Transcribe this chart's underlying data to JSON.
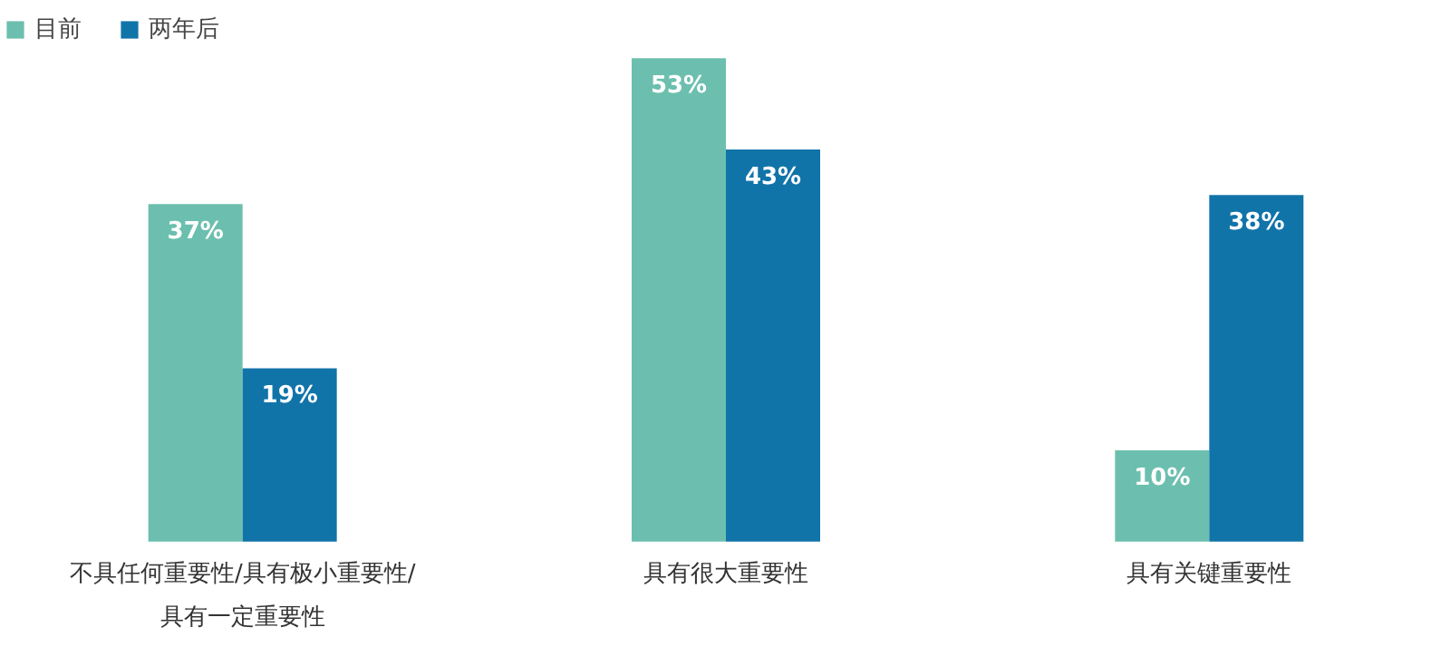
{
  "chart_data": {
    "type": "bar",
    "categories": [
      "不具任何重要性/具有极小重要性/具有一定重要性",
      "具有很大重要性",
      "具有关键重要性"
    ],
    "series": [
      {
        "name": "目前",
        "color": "#6cbfae",
        "values": [
          37,
          53,
          10
        ],
        "value_labels": [
          "37%",
          "53%",
          "10%"
        ]
      },
      {
        "name": "两年后",
        "color": "#1174a9",
        "values": [
          19,
          43,
          38
        ],
        "value_labels": [
          "19%",
          "43%",
          "38%"
        ]
      }
    ],
    "legend": "top left"
  }
}
